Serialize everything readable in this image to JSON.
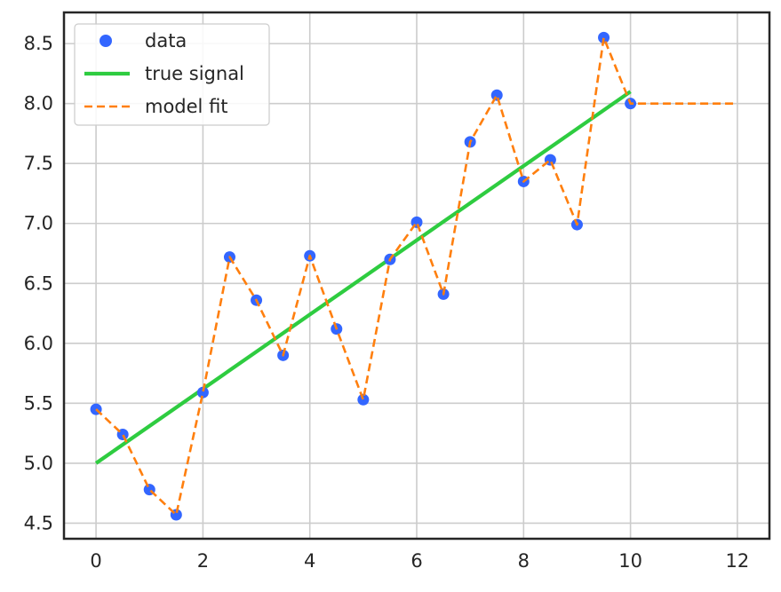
{
  "chart_data": {
    "type": "line",
    "xlim": [
      -0.6,
      12.6
    ],
    "ylim": [
      4.37,
      8.76
    ],
    "x_ticks": [
      0,
      2,
      4,
      6,
      8,
      10,
      12
    ],
    "y_ticks": [
      4.5,
      5.0,
      5.5,
      6.0,
      6.5,
      7.0,
      7.5,
      8.0,
      8.5
    ],
    "x_tick_labels": [
      "0",
      "2",
      "4",
      "6",
      "8",
      "10",
      "12"
    ],
    "y_tick_labels": [
      "4.5",
      "5.0",
      "5.5",
      "6.0",
      "6.5",
      "7.0",
      "7.5",
      "8.0",
      "8.5"
    ],
    "grid": true,
    "legend_position": "top-left",
    "series": [
      {
        "name": "data",
        "kind": "scatter",
        "color": "#3366ff",
        "x": [
          0,
          0.5,
          1,
          1.5,
          2,
          2.5,
          3,
          3.5,
          4,
          4.5,
          5,
          5.5,
          6,
          6.5,
          7,
          7.5,
          8,
          8.5,
          9,
          9.5,
          10
        ],
        "y": [
          5.45,
          5.24,
          4.78,
          4.57,
          5.59,
          6.72,
          6.36,
          5.9,
          6.73,
          6.12,
          5.53,
          6.7,
          7.01,
          6.41,
          7.68,
          8.07,
          7.35,
          7.53,
          6.99,
          8.55,
          8.0
        ]
      },
      {
        "name": "true signal",
        "kind": "line",
        "color": "#2ecc40",
        "style": "solid",
        "x": [
          0,
          10
        ],
        "y": [
          5.0,
          8.1
        ]
      },
      {
        "name": "model fit",
        "kind": "line",
        "color": "#ff7f0e",
        "style": "dashed",
        "x": [
          0,
          0.5,
          1,
          1.5,
          2,
          2.5,
          3,
          3.5,
          4,
          4.5,
          5,
          5.5,
          6,
          6.5,
          7,
          7.5,
          8,
          8.5,
          9,
          9.5,
          10,
          12
        ],
        "y": [
          5.45,
          5.24,
          4.78,
          4.57,
          5.59,
          6.72,
          6.36,
          5.9,
          6.73,
          6.12,
          5.53,
          6.7,
          7.01,
          6.41,
          7.68,
          8.07,
          7.35,
          7.53,
          6.99,
          8.55,
          8.0,
          8.0
        ]
      }
    ],
    "legend": [
      {
        "label": "data",
        "kind": "scatter",
        "color": "#3366ff"
      },
      {
        "label": "true signal",
        "kind": "line",
        "color": "#2ecc40",
        "style": "solid"
      },
      {
        "label": "model fit",
        "kind": "line",
        "color": "#ff7f0e",
        "style": "dashed"
      }
    ]
  }
}
